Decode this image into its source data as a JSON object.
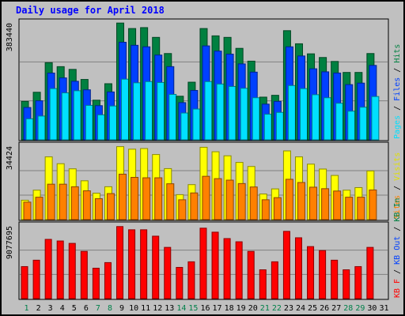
{
  "chart_data": {
    "type": "bar",
    "title": "Daily usage for April 2018",
    "categories": [
      "1",
      "2",
      "3",
      "4",
      "5",
      "6",
      "7",
      "8",
      "9",
      "10",
      "11",
      "12",
      "13",
      "14",
      "15",
      "16",
      "17",
      "18",
      "19",
      "20",
      "21",
      "22",
      "23",
      "24",
      "25",
      "26",
      "27",
      "28",
      "29",
      "30",
      "31"
    ],
    "weekend_days": [
      "1",
      "7",
      "8",
      "14",
      "15",
      "21",
      "22",
      "28",
      "29"
    ],
    "panels": [
      {
        "id": "pages-files-hits",
        "max_label": "383440",
        "ymax": 383440,
        "legend": [
          {
            "text": "Hits",
            "color": "#008040"
          },
          {
            "text": "Files",
            "color": "#0040ff"
          },
          {
            "text": "Pages",
            "color": "#00e0ff"
          }
        ],
        "series": [
          {
            "name": "Hits",
            "color": "#008040",
            "values": [
              126000,
              156000,
              253000,
              240000,
              231000,
              198000,
              130000,
              184000,
              383000,
              365000,
              368000,
              336000,
              283000,
              143000,
              189000,
              365000,
              341000,
              336000,
              300000,
              258000,
              140000,
              146000,
              358000,
              315000,
              282000,
              270000,
              257000,
              221000,
              221000,
              283000,
              null
            ]
          },
          {
            "name": "Files",
            "color": "#0040ff",
            "values": [
              106000,
              128000,
              219000,
              203000,
              192000,
              164000,
              112000,
              157000,
              320000,
              310000,
              305000,
              278000,
              240000,
              122000,
              162000,
              308000,
              291000,
              281000,
              249000,
              222000,
              117000,
              126000,
              305000,
              275000,
              233000,
              223000,
              219000,
              181000,
              186000,
              244000,
              null
            ]
          },
          {
            "name": "Pages",
            "color": "#00e0ff",
            "values": [
              69000,
              78000,
              168000,
              154000,
              161000,
              113000,
              82000,
              111000,
              199000,
              187000,
              191000,
              188000,
              149000,
              88000,
              101000,
              191000,
              183000,
              175000,
              169000,
              138000,
              84000,
              90000,
              178000,
              168000,
              148000,
              138000,
              120000,
              94000,
              107000,
              142000,
              null
            ]
          }
        ]
      },
      {
        "id": "visits-sites",
        "max_label": "34424",
        "ymax": 34424,
        "legend": [
          {
            "text": "Visits",
            "color": "#e0e000"
          },
          {
            "text": "Sites",
            "color": "#ff8000"
          }
        ],
        "series": [
          {
            "name": "Visits",
            "color": "#ffff00",
            "values": [
              9100,
              13800,
              29400,
              26200,
              23800,
              18200,
              12400,
              15400,
              34200,
              33000,
              33300,
              30500,
              23900,
              11700,
              16400,
              33900,
              31800,
              29900,
              26800,
              24900,
              12000,
              14400,
              32200,
              29400,
              26000,
              23700,
              20700,
              13800,
              15000,
              22800,
              null
            ]
          },
          {
            "name": "Sites",
            "color": "#ff8000",
            "values": [
              8200,
              10500,
              16600,
              16600,
              15400,
              13500,
              9800,
              12200,
              21300,
              19800,
              19600,
              19600,
              16800,
              9300,
              12500,
              20300,
              19200,
              18500,
              16900,
              15300,
              9300,
              10300,
              18900,
              17400,
              15200,
              14500,
              13400,
              10500,
              10500,
              13900,
              null
            ]
          }
        ]
      },
      {
        "id": "kbytes",
        "max_label": "9077695",
        "ymax": 9077695,
        "legend": [
          {
            "text": "KB In",
            "color": "#008040"
          },
          {
            "text": "KB Out",
            "color": "#0040ff"
          },
          {
            "text": "KB F",
            "color": "#ff0000"
          }
        ],
        "series": [
          {
            "name": "KB F",
            "color": "#ff0000",
            "values": [
              4000000,
              4800000,
              7400000,
              7200000,
              6900000,
              5900000,
              3800000,
              4500000,
              9000000,
              8600000,
              8600000,
              7800000,
              6400000,
              3900000,
              4600000,
              8800000,
              8300000,
              7500000,
              7100000,
              5900000,
              3600000,
              4600000,
              8400000,
              7600000,
              6500000,
              6000000,
              4800000,
              3600000,
              4000000,
              6400000,
              null
            ]
          }
        ]
      }
    ]
  }
}
